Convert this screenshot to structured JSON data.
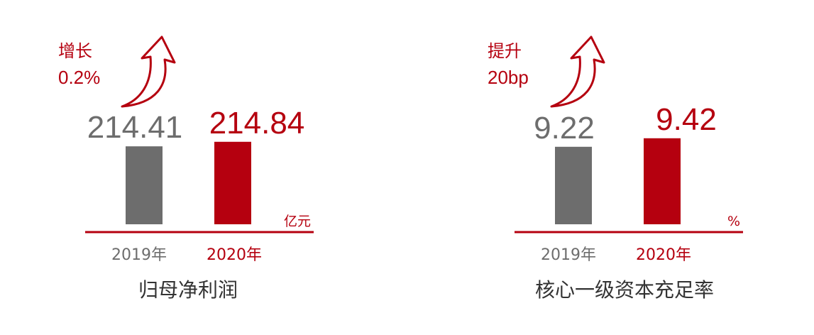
{
  "chart_data": [
    {
      "type": "bar",
      "title": "归母净利润",
      "categories": [
        "2019年",
        "2020年"
      ],
      "values": [
        214.41,
        214.84
      ],
      "colors": [
        "#6d6d6d",
        "#b5000f"
      ],
      "unit": "亿元",
      "change_label": "增长",
      "change_value": "0.2%",
      "ylim": [
        207,
        215.5
      ]
    },
    {
      "type": "bar",
      "title": "核心一级资本充足率",
      "categories": [
        "2019年",
        "2020年"
      ],
      "values": [
        9.22,
        9.42
      ],
      "colors": [
        "#6d6d6d",
        "#b5000f"
      ],
      "unit": "%",
      "change_label": "提升",
      "change_value": "20bp",
      "ylim": [
        7.4,
        9.5
      ]
    }
  ]
}
